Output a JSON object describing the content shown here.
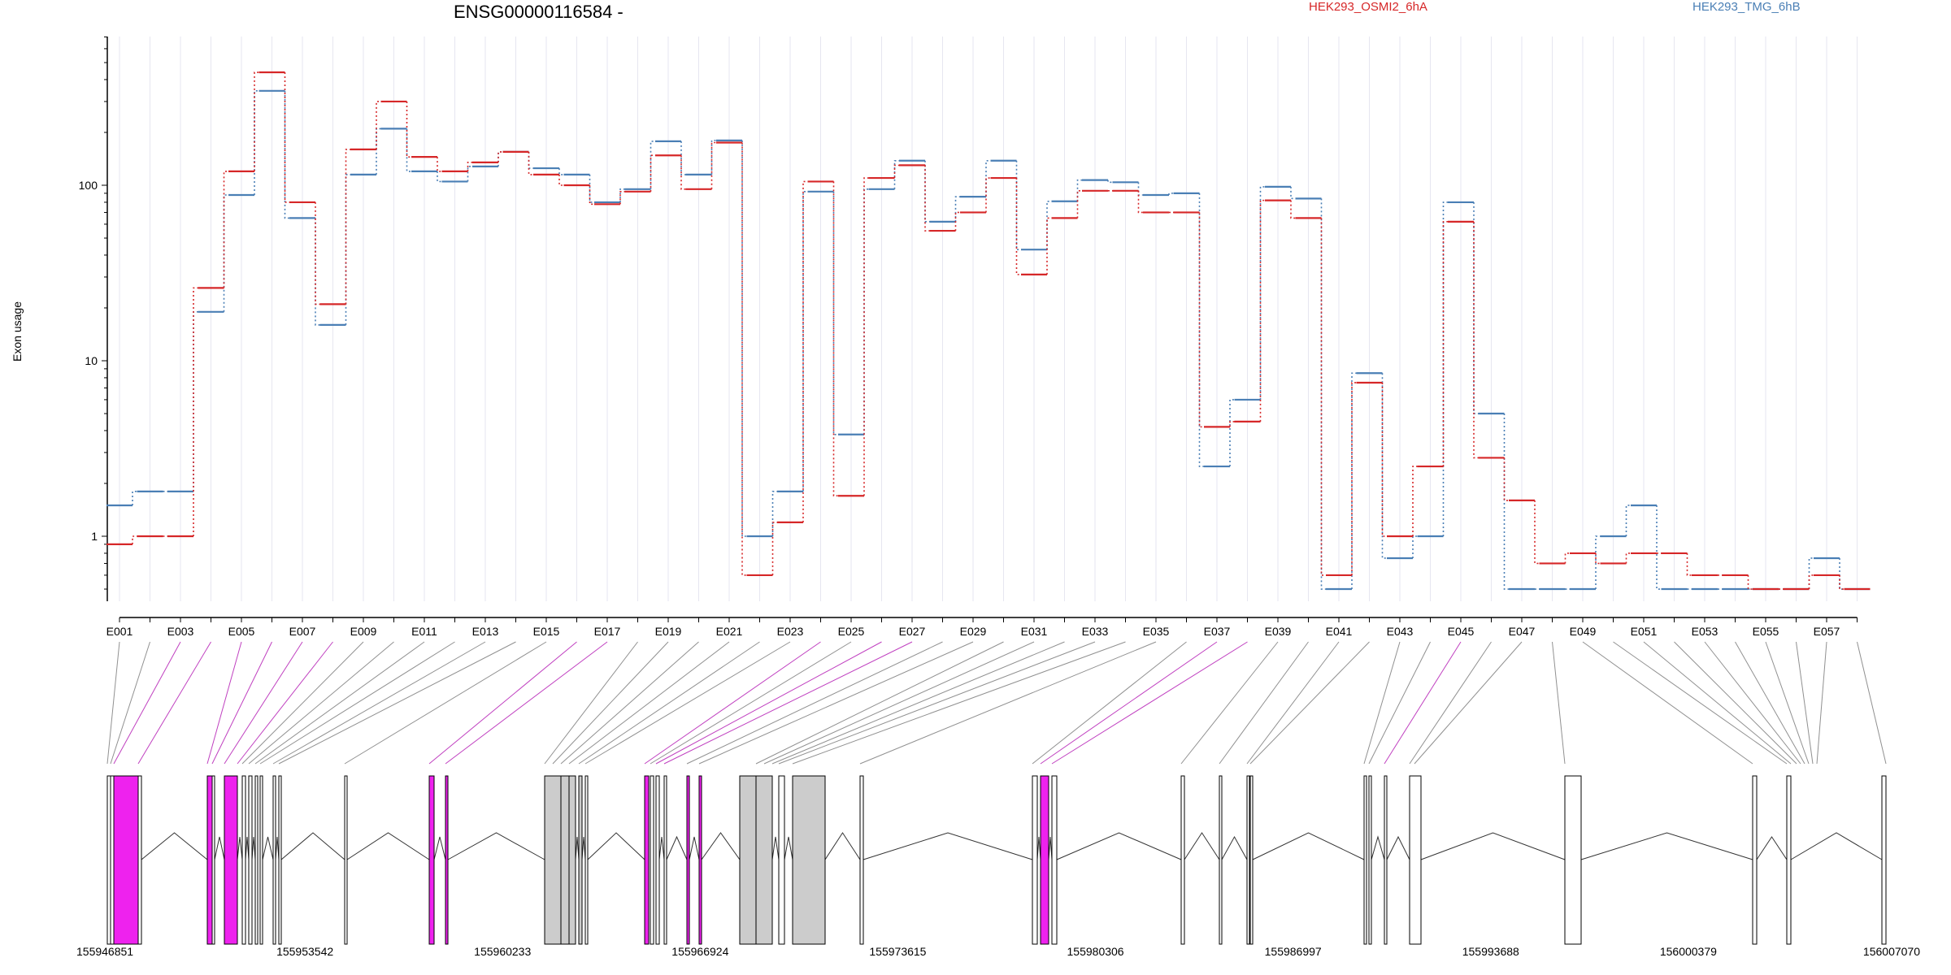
{
  "chart_data": {
    "type": "line",
    "title": "ENSG00000116584 -",
    "ylabel": "Exon usage",
    "y_scale": "log",
    "ylim": [
      0.45,
      600
    ],
    "y_ticks": [
      1,
      10,
      100
    ],
    "y_tick_labels": [
      "1",
      "10",
      "100"
    ],
    "grid": true,
    "legend_position": "top",
    "categories": [
      "E001",
      "E002",
      "E003",
      "E004",
      "E005",
      "E006",
      "E007",
      "E008",
      "E009",
      "E010",
      "E011",
      "E012",
      "E013",
      "E014",
      "E015",
      "E016",
      "E017",
      "E018",
      "E019",
      "E020",
      "E021",
      "E022",
      "E023",
      "E024",
      "E025",
      "E026",
      "E027",
      "E028",
      "E029",
      "E030",
      "E031",
      "E032",
      "E033",
      "E034",
      "E035",
      "E036",
      "E037",
      "E038",
      "E039",
      "E040",
      "E041",
      "E042",
      "E043",
      "E044",
      "E045",
      "E046",
      "E047",
      "E048",
      "E049",
      "E050",
      "E051",
      "E052",
      "E053",
      "E054",
      "E055",
      "E056",
      "E057",
      "E058"
    ],
    "x_tick_labels": [
      "E001",
      "E003",
      "E005",
      "E007",
      "E009",
      "E011",
      "E013",
      "E015",
      "E017",
      "E019",
      "E021",
      "E023",
      "E025",
      "E027",
      "E029",
      "E031",
      "E033",
      "E035",
      "E037",
      "E039",
      "E041",
      "E043",
      "E045",
      "E047",
      "E049",
      "E051",
      "E053",
      "E055",
      "E057"
    ],
    "series": [
      {
        "name": "HEK293_OSMI2_6hA",
        "color": "#d62728",
        "values": [
          0.9,
          1.0,
          1.0,
          26,
          120,
          440,
          80,
          21,
          160,
          300,
          145,
          120,
          135,
          155,
          115,
          100,
          78,
          92,
          148,
          95,
          175,
          0.6,
          1.2,
          105,
          1.7,
          110,
          130,
          55,
          70,
          110,
          31,
          65,
          93,
          93,
          70,
          70,
          4.2,
          4.5,
          82,
          65,
          0.6,
          7.5,
          1.0,
          2.5,
          62,
          2.8,
          1.6,
          0.7,
          0.8,
          0.7,
          0.8,
          0.8,
          0.6,
          0.6,
          0.5,
          0.5,
          0.6,
          0.5
        ]
      },
      {
        "name": "HEK293_TMG_6hB",
        "color": "#4a7fb5",
        "values": [
          1.5,
          1.8,
          1.8,
          19,
          88,
          345,
          65,
          16,
          115,
          210,
          120,
          105,
          128,
          155,
          125,
          115,
          80,
          95,
          178,
          115,
          180,
          1.0,
          1.8,
          92,
          3.8,
          95,
          138,
          62,
          86,
          138,
          43,
          81,
          107,
          104,
          88,
          90,
          2.5,
          6.0,
          98,
          84,
          0.5,
          8.5,
          0.75,
          1.0,
          80,
          5.0,
          0.5,
          0.5,
          0.5,
          1.0,
          1.5,
          0.5,
          0.5,
          0.5,
          0.5,
          0.5,
          0.75,
          0.5
        ]
      }
    ],
    "genomic_axis": {
      "labels": [
        "155946851",
        "155953542",
        "155960233",
        "155966924",
        "155973615",
        "155980306",
        "155986997",
        "155993688",
        "156000379",
        "156007070"
      ]
    },
    "exon_colors": {
      "significant": "#ee22ee",
      "other": "#cccccc",
      "outline": "#000000"
    }
  }
}
